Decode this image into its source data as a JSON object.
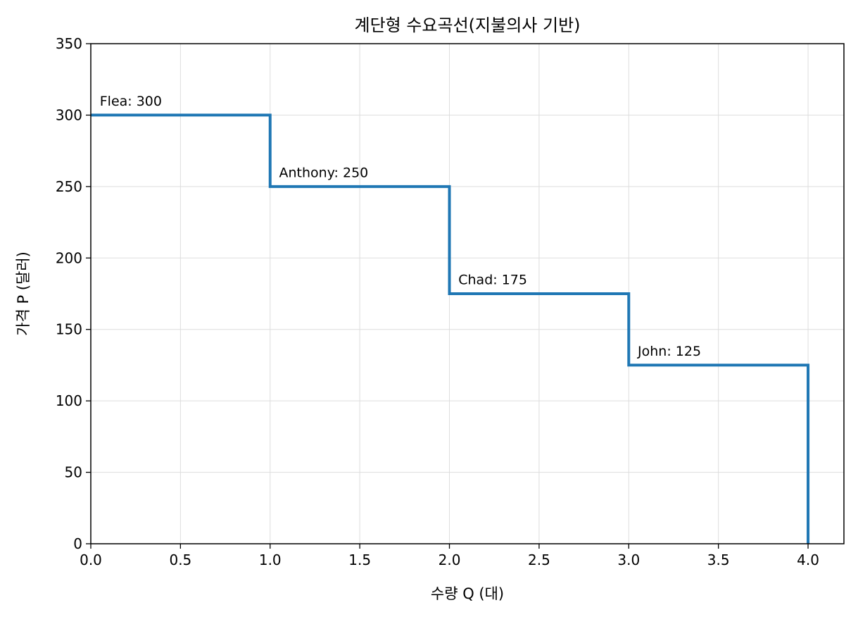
{
  "chart_data": {
    "type": "line",
    "title": "계단형 수요곡선(지불의사 기반)",
    "xlabel": "수량 Q (대)",
    "ylabel": "가격 P (달러)",
    "xlim": [
      0,
      4.2
    ],
    "ylim": [
      0,
      350
    ],
    "x_ticks": [
      0.0,
      0.5,
      1.0,
      1.5,
      2.0,
      2.5,
      3.0,
      3.5,
      4.0
    ],
    "x_tick_labels": [
      "0.0",
      "0.5",
      "1.0",
      "1.5",
      "2.0",
      "2.5",
      "3.0",
      "3.5",
      "4.0"
    ],
    "y_ticks": [
      0,
      50,
      100,
      150,
      200,
      250,
      300,
      350
    ],
    "y_tick_labels": [
      "0",
      "50",
      "100",
      "150",
      "200",
      "250",
      "300",
      "350"
    ],
    "grid": true,
    "series": [
      {
        "style": "step",
        "color": "#1f77b4",
        "x": [
          0,
          1,
          1,
          2,
          2,
          3,
          3,
          4,
          4
        ],
        "y": [
          300,
          300,
          250,
          250,
          175,
          175,
          125,
          125,
          0
        ]
      }
    ],
    "annotations": [
      {
        "text": "Flea: 300",
        "x": 0.05,
        "y": 310
      },
      {
        "text": "Anthony: 250",
        "x": 1.05,
        "y": 260
      },
      {
        "text": "Chad: 175",
        "x": 2.05,
        "y": 185
      },
      {
        "text": "John: 125",
        "x": 3.05,
        "y": 135
      }
    ]
  }
}
